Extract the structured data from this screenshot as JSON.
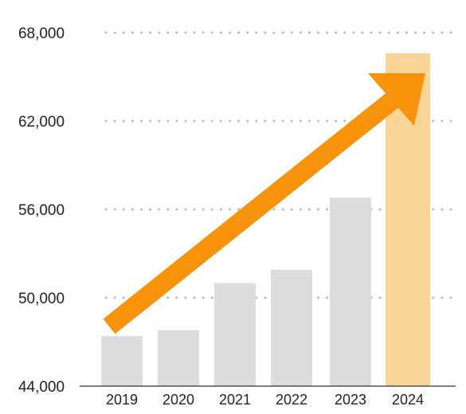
{
  "chart_data": {
    "type": "bar",
    "title": "",
    "xlabel": "",
    "ylabel": "",
    "categories": [
      "2019",
      "2020",
      "2021",
      "2022",
      "2023",
      "2024"
    ],
    "values": [
      47400,
      47800,
      51000,
      51900,
      56800,
      66600
    ],
    "ylim": [
      44000,
      68000
    ],
    "yticks": [
      44000,
      50000,
      56000,
      62000,
      68000
    ],
    "ytick_labels": [
      "44,000",
      "50,000",
      "56,000",
      "62,000",
      "68,000"
    ],
    "grid": "dotted horizontal",
    "highlight_index": 5,
    "annotation": "upward trend arrow from 2019 to 2024",
    "colors": {
      "bar": "#dcdcdc",
      "highlight_bar": "#f9d597",
      "arrow": "#f7930a",
      "grid": "#bbbbbb",
      "axis": "#333333"
    }
  }
}
